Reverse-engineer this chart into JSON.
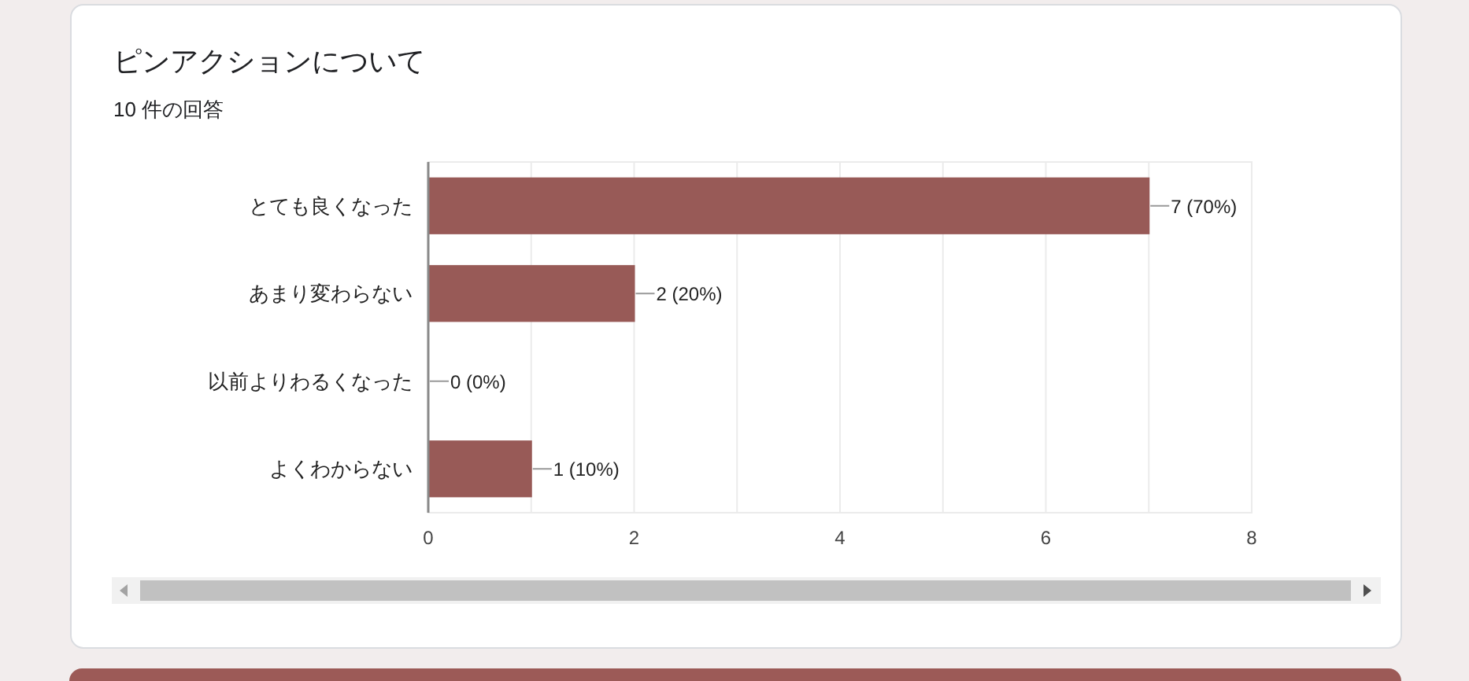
{
  "chart_data": {
    "type": "bar",
    "orientation": "horizontal",
    "title": "ピンアクションについて",
    "subtitle": "10 件の回答",
    "categories": [
      "とても良くなった",
      "あまり変わらない",
      "以前よりわるくなった",
      "よくわからない"
    ],
    "values": [
      7,
      2,
      0,
      1
    ],
    "color": "#985a57",
    "value_labels": [
      "7 (70%)",
      "2 (20%)",
      "0 (0%)",
      "1 (10%)"
    ],
    "xlim": [
      0,
      8
    ],
    "xticks": [
      0,
      {
        "value": 1,
        "label": null
      },
      2,
      {
        "value": 3,
        "label": null
      },
      4,
      {
        "value": 5,
        "label": null
      },
      6,
      {
        "value": 7,
        "label": null
      },
      8
    ],
    "grid": "x"
  }
}
